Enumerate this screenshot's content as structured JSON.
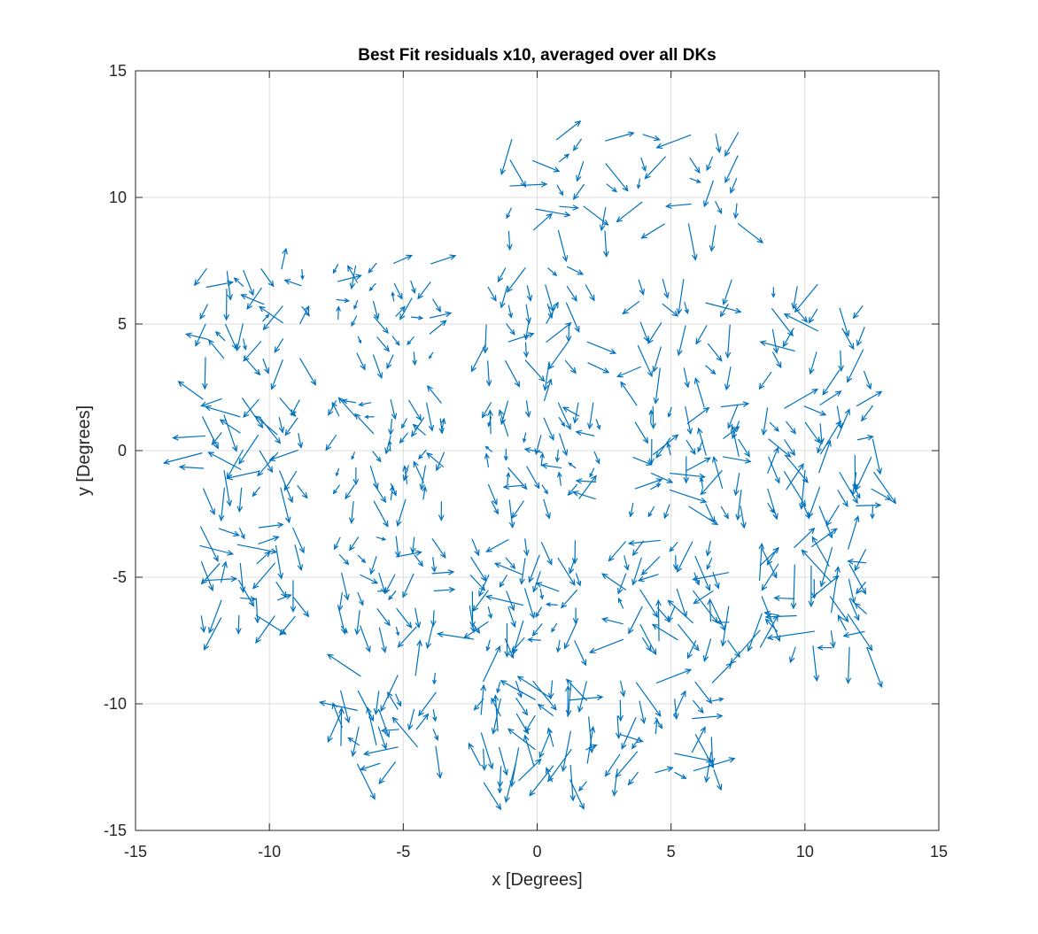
{
  "chart_data": {
    "type": "quiver",
    "title": "Best Fit residuals x10, averaged over all DKs",
    "xlabel": "x [Degrees]",
    "ylabel": "y [Degrees]",
    "xlim": [
      -15,
      15
    ],
    "ylim": [
      -15,
      15
    ],
    "xticks": [
      -15,
      -10,
      -5,
      0,
      5,
      10,
      15
    ],
    "yticks": [
      -15,
      -10,
      -5,
      0,
      5,
      10,
      15
    ],
    "grid": true,
    "arrow_color": "#0072BD",
    "arrow_scale": 10,
    "tiles": [
      {
        "cx": 0.8,
        "cy": 10.5,
        "rows": 5,
        "cols": 5,
        "spacing": 0.9,
        "seed": 11,
        "mag": 0.09
      },
      {
        "cx": 5.7,
        "cy": 10.7,
        "rows": 5,
        "cols": 5,
        "spacing": 0.9,
        "seed": 12,
        "mag": 0.09
      },
      {
        "cx": -10.6,
        "cy": 5.4,
        "rows": 6,
        "cols": 6,
        "spacing": 0.7,
        "seed": 21,
        "mag": 0.08
      },
      {
        "cx": -5.7,
        "cy": 5.6,
        "rows": 6,
        "cols": 6,
        "spacing": 0.7,
        "seed": 22,
        "mag": 0.06
      },
      {
        "cx": 0.0,
        "cy": 5.4,
        "rows": 6,
        "cols": 6,
        "spacing": 0.75,
        "seed": 23,
        "mag": 0.08
      },
      {
        "cx": 5.5,
        "cy": 5.0,
        "rows": 5,
        "cols": 5,
        "spacing": 0.85,
        "seed": 24,
        "mag": 0.09
      },
      {
        "cx": 10.5,
        "cy": 4.8,
        "rows": 5,
        "cols": 5,
        "spacing": 0.85,
        "seed": 25,
        "mag": 0.09
      },
      {
        "cx": -10.7,
        "cy": 0.3,
        "rows": 6,
        "cols": 6,
        "spacing": 0.7,
        "seed": 31,
        "mag": 0.1
      },
      {
        "cx": -5.5,
        "cy": 0.0,
        "rows": 7,
        "cols": 7,
        "spacing": 0.65,
        "seed": 32,
        "mag": 0.07
      },
      {
        "cx": 0.2,
        "cy": 0.0,
        "rows": 7,
        "cols": 7,
        "spacing": 0.65,
        "seed": 33,
        "mag": 0.07
      },
      {
        "cx": 5.6,
        "cy": -0.2,
        "rows": 7,
        "cols": 7,
        "spacing": 0.65,
        "seed": 34,
        "mag": 0.09
      },
      {
        "cx": 10.6,
        "cy": -0.2,
        "rows": 7,
        "cols": 7,
        "spacing": 0.65,
        "seed": 35,
        "mag": 0.1
      },
      {
        "cx": -10.8,
        "cy": -4.8,
        "rows": 6,
        "cols": 6,
        "spacing": 0.7,
        "seed": 41,
        "mag": 0.1
      },
      {
        "cx": -5.6,
        "cy": -5.2,
        "rows": 6,
        "cols": 6,
        "spacing": 0.7,
        "seed": 42,
        "mag": 0.07
      },
      {
        "cx": -0.5,
        "cy": -5.5,
        "rows": 7,
        "cols": 7,
        "spacing": 0.65,
        "seed": 43,
        "mag": 0.09
      },
      {
        "cx": 5.2,
        "cy": -5.5,
        "rows": 7,
        "cols": 7,
        "spacing": 0.65,
        "seed": 44,
        "mag": 0.1
      },
      {
        "cx": 10.3,
        "cy": -5.8,
        "rows": 7,
        "cols": 7,
        "spacing": 0.65,
        "seed": 45,
        "mag": 0.12
      },
      {
        "cx": -5.6,
        "cy": -10.6,
        "rows": 6,
        "cols": 6,
        "spacing": 0.7,
        "seed": 51,
        "mag": 0.1
      },
      {
        "cx": -0.1,
        "cy": -11.1,
        "rows": 7,
        "cols": 7,
        "spacing": 0.65,
        "seed": 52,
        "mag": 0.1
      },
      {
        "cx": 4.8,
        "cy": -10.9,
        "rows": 6,
        "cols": 6,
        "spacing": 0.7,
        "seed": 53,
        "mag": 0.1
      }
    ]
  }
}
